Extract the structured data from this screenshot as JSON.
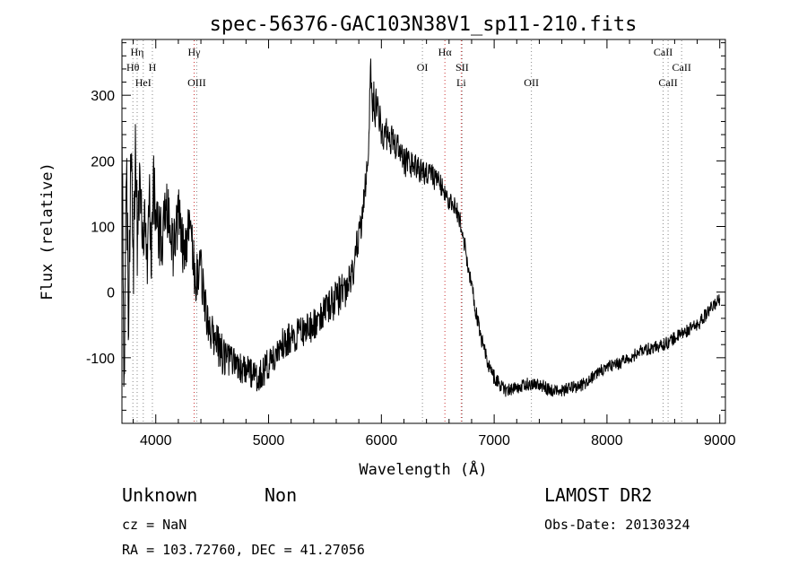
{
  "chart_data": {
    "type": "line",
    "title": "spec-56376-GAC103N38V1_sp11-210.fits",
    "xlabel": "Wavelength (Å)",
    "ylabel": "Flux (relative)",
    "xlim": [
      3700,
      9050
    ],
    "ylim": [
      -200,
      385
    ],
    "xticks": [
      4000,
      5000,
      6000,
      7000,
      8000,
      9000
    ],
    "yticks": [
      -100,
      0,
      100,
      200,
      300
    ],
    "grid": false,
    "series": [
      {
        "x": [
          3700,
          3720,
          3740,
          3760,
          3780,
          3800,
          3820,
          3840,
          3860,
          3880,
          3900,
          3920,
          3940,
          3960,
          3980,
          4000,
          4050,
          4100,
          4150,
          4200,
          4250,
          4300,
          4350,
          4400,
          4450,
          4500,
          4600,
          4700,
          4800,
          4900,
          5000,
          5100,
          5200,
          5300,
          5400,
          5500,
          5600,
          5700,
          5750,
          5800,
          5850,
          5880,
          5900,
          5920,
          5950,
          6000,
          6100,
          6200,
          6300,
          6400,
          6500,
          6550,
          6600,
          6650,
          6700,
          6750,
          6800,
          6850,
          6900,
          6950,
          7000,
          7100,
          7200,
          7300,
          7400,
          7500,
          7600,
          7700,
          7800,
          7900,
          8000,
          8100,
          8200,
          8300,
          8400,
          8500,
          8600,
          8700,
          8800,
          8900,
          9000
        ],
        "y": [
          250,
          -150,
          180,
          -50,
          200,
          20,
          220,
          60,
          230,
          40,
          140,
          0,
          170,
          60,
          160,
          100,
          80,
          130,
          60,
          120,
          60,
          100,
          20,
          40,
          -40,
          -60,
          -100,
          -110,
          -120,
          -130,
          -110,
          -80,
          -70,
          -60,
          -50,
          -30,
          -10,
          10,
          40,
          80,
          140,
          200,
          330,
          300,
          280,
          250,
          230,
          200,
          190,
          180,
          170,
          160,
          140,
          130,
          110,
          60,
          10,
          -40,
          -80,
          -110,
          -130,
          -150,
          -145,
          -140,
          -140,
          -150,
          -150,
          -145,
          -140,
          -125,
          -115,
          -110,
          -100,
          -90,
          -85,
          -80,
          -70,
          -60,
          -50,
          -30,
          -10
        ],
        "noise_amplitude": [
          60,
          70,
          70,
          70,
          70,
          70,
          70,
          70,
          70,
          70,
          60,
          60,
          60,
          60,
          60,
          50,
          50,
          45,
          45,
          45,
          45,
          40,
          40,
          40,
          35,
          35,
          30,
          25,
          25,
          25,
          25,
          25,
          25,
          25,
          25,
          25,
          30,
          30,
          30,
          30,
          30,
          30,
          40,
          40,
          35,
          30,
          25,
          25,
          20,
          20,
          18,
          18,
          15,
          15,
          15,
          15,
          15,
          15,
          12,
          12,
          12,
          10,
          10,
          10,
          10,
          10,
          10,
          10,
          10,
          10,
          10,
          10,
          10,
          10,
          10,
          10,
          10,
          10,
          10,
          10,
          10
        ],
        "color": "#000000"
      }
    ],
    "lines": [
      {
        "label": "Hη",
        "x": 3835,
        "row": 0,
        "color": "#888888"
      },
      {
        "label": "Hθ",
        "x": 3797,
        "row": 1,
        "color": "#888888"
      },
      {
        "label": "H",
        "x": 3970,
        "row": 1,
        "color": "#888888"
      },
      {
        "label": "HeI",
        "x": 3889,
        "row": 2,
        "color": "#888888"
      },
      {
        "label": "Hγ",
        "x": 4340,
        "row": 0,
        "color": "#cc3333"
      },
      {
        "label": "OIII",
        "x": 4363,
        "row": 2,
        "color": "#888888"
      },
      {
        "label": "OI",
        "x": 6364,
        "row": 1,
        "color": "#888888"
      },
      {
        "label": "Hα",
        "x": 6563,
        "row": 0,
        "color": "#cc3333"
      },
      {
        "label": "SII",
        "x": 6716,
        "row": 1,
        "color": "#888888"
      },
      {
        "label": "Li",
        "x": 6708,
        "row": 2,
        "color": "#cc3333"
      },
      {
        "label": "OII",
        "x": 7330,
        "row": 2,
        "color": "#888888"
      },
      {
        "label": "CaII",
        "x": 8498,
        "row": 0,
        "color": "#888888"
      },
      {
        "label": "CaII",
        "x": 8662,
        "row": 1,
        "color": "#888888"
      },
      {
        "label": "CaII",
        "x": 8542,
        "row": 2,
        "color": "#888888"
      }
    ]
  },
  "info": {
    "class": "Unknown",
    "subclass": "Non",
    "survey": "LAMOST DR2",
    "cz": "cz = NaN",
    "obs_date": "Obs-Date: 20130324",
    "coords": "RA = 103.72760, DEC =  41.27056"
  }
}
